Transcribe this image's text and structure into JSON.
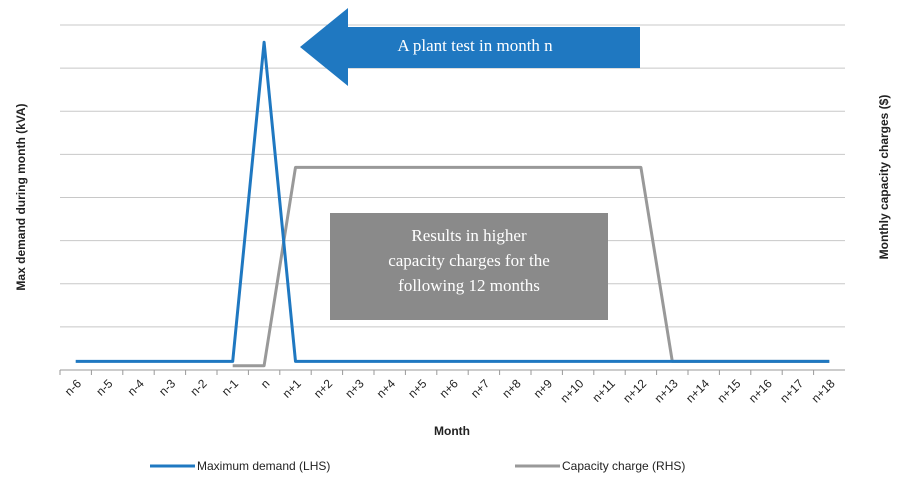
{
  "chart_data": {
    "type": "line",
    "x_label": "Month",
    "y_label": "Max demand during month (kVA)",
    "y2_label": "Monthly capacity charges ($)",
    "categories": [
      "n-6",
      "n-5",
      "n-4",
      "n-3",
      "n-2",
      "n-1",
      "n",
      "n+1",
      "n+2",
      "n+3",
      "n+4",
      "n+5",
      "n+6",
      "n+7",
      "n+8",
      "n+9",
      "n+10",
      "n+11",
      "n+12",
      "n+13",
      "n+14",
      "n+15",
      "n+16",
      "n+17",
      "n+18"
    ],
    "series": [
      {
        "name": "Maximum demand (LHS)",
        "color": "#1f78c1",
        "values": [
          0.2,
          0.2,
          0.2,
          0.2,
          0.2,
          0.2,
          7.6,
          0.2,
          0.2,
          0.2,
          0.2,
          0.2,
          0.2,
          0.2,
          0.2,
          0.2,
          0.2,
          0.2,
          0.2,
          0.2,
          0.2,
          0.2,
          0.2,
          0.2,
          0.2
        ]
      },
      {
        "name": "Capacity charge (RHS)",
        "color": "#999999",
        "axis": "y2",
        "values": [
          null,
          null,
          null,
          null,
          null,
          0.1,
          0.1,
          4.7,
          4.7,
          4.7,
          4.7,
          4.7,
          4.7,
          4.7,
          4.7,
          4.7,
          4.7,
          4.7,
          4.7,
          0.2,
          0.2,
          0.2,
          0.2,
          0.2,
          0.2
        ]
      }
    ],
    "ylim": [
      0,
      8
    ],
    "yticks": [
      0,
      1,
      2,
      3,
      4,
      5,
      6,
      7,
      8
    ],
    "y2lim": [
      0,
      8
    ],
    "grid": true,
    "annotations": [
      {
        "text": "A plant test in month n"
      },
      {
        "lines": [
          "Results in higher",
          "capacity charges for the",
          "following 12 months"
        ]
      }
    ]
  }
}
